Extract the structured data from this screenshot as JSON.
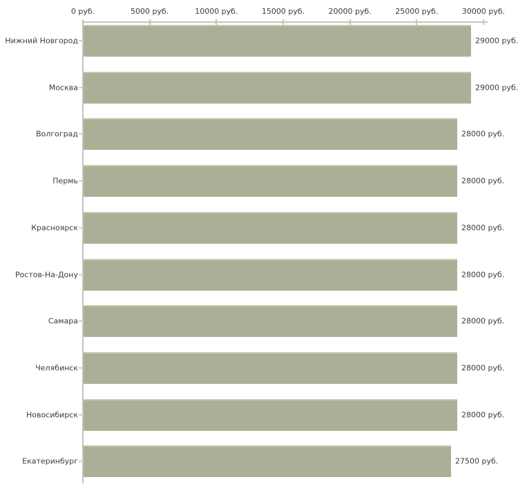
{
  "chart_data": {
    "type": "bar",
    "orientation": "horizontal",
    "title": "",
    "xlabel": "",
    "ylabel": "",
    "categories": [
      "Нижний Новгород",
      "Москва",
      "Волгоград",
      "Пермь",
      "Красноярск",
      "Ростов-На-Дону",
      "Самара",
      "Челябинск",
      "Новосибирск",
      "Екатеринбург"
    ],
    "values": [
      29000,
      29000,
      28000,
      28000,
      28000,
      28000,
      28000,
      28000,
      28000,
      27500
    ],
    "value_labels": [
      "29000 руб.",
      "29000 руб.",
      "28000 руб.",
      "28000 руб.",
      "28000 руб.",
      "28000 руб.",
      "28000 руб.",
      "28000 руб.",
      "28000 руб.",
      "27500 руб."
    ],
    "x_axis": {
      "position": "top",
      "range": [
        0,
        30000
      ],
      "ticks": [
        0,
        5000,
        10000,
        15000,
        20000,
        25000,
        30000
      ],
      "tick_labels": [
        "0 руб.",
        "5000 руб.",
        "10000 руб.",
        "15000 руб.",
        "20000 руб.",
        "25000 руб.",
        "30000 руб."
      ]
    },
    "legend": "none",
    "grid": "off",
    "colors": {
      "bar": "#aab095",
      "bar_top_edge": "#c6cbb1",
      "axis_line": "#c2c2c2",
      "axis_tick": "#c3c9a3",
      "category_tick": "#ccd1b6",
      "text": "#3b3b3b",
      "background": "#ffffff"
    }
  }
}
